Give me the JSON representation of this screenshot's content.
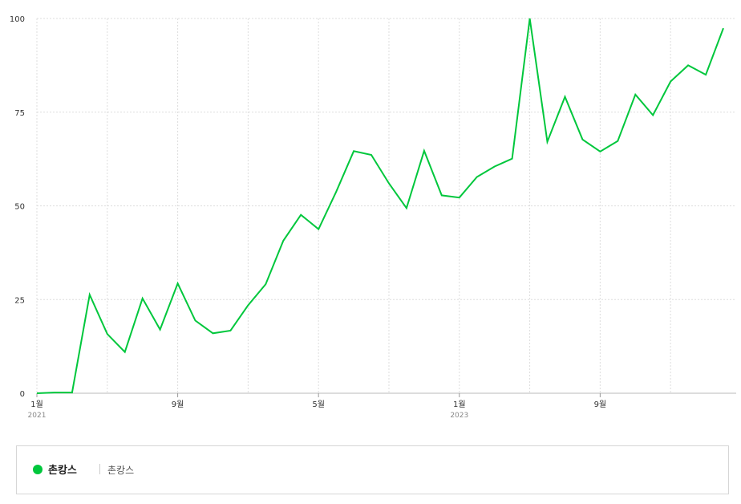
{
  "chart_data": {
    "type": "line",
    "ylim": [
      0,
      100
    ],
    "yticks": [
      0,
      25,
      50,
      75,
      100
    ],
    "grid": true,
    "x_tick_labels": [
      {
        "index": 0,
        "label": "1월",
        "year": "2021"
      },
      {
        "index": 8,
        "label": "9월",
        "year": ""
      },
      {
        "index": 16,
        "label": "5월",
        "year": ""
      },
      {
        "index": 24,
        "label": "1월",
        "year": "2023"
      },
      {
        "index": 32,
        "label": "9월",
        "year": ""
      }
    ],
    "series": [
      {
        "name": "촌캉스",
        "color": "#00c73c",
        "values": [
          0,
          0.2,
          0.2,
          26.3,
          15.8,
          11,
          25.3,
          17,
          29.3,
          19.4,
          16,
          16.7,
          23.5,
          29.1,
          40.7,
          47.6,
          43.8,
          53.7,
          64.6,
          63.6,
          56,
          49.4,
          64.7,
          52.8,
          52.2,
          57.7,
          60.5,
          62.6,
          100,
          67.1,
          79.1,
          67.7,
          64.5,
          67.3,
          79.7,
          74.2,
          83.2,
          87.5,
          85,
          97.4
        ]
      }
    ]
  },
  "legend": {
    "name": "촌캉스",
    "sub": "촌캉스",
    "color": "#00c73c"
  }
}
